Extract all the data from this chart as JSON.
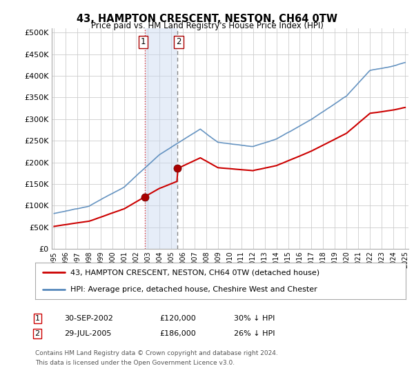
{
  "title": "43, HAMPTON CRESCENT, NESTON, CH64 0TW",
  "subtitle": "Price paid vs. HM Land Registry's House Price Index (HPI)",
  "ylabel_ticks": [
    "£0",
    "£50K",
    "£100K",
    "£150K",
    "£200K",
    "£250K",
    "£300K",
    "£350K",
    "£400K",
    "£450K",
    "£500K"
  ],
  "ytick_values": [
    0,
    50000,
    100000,
    150000,
    200000,
    250000,
    300000,
    350000,
    400000,
    450000,
    500000
  ],
  "ylim": [
    0,
    510000
  ],
  "xlim_start": 1994.8,
  "xlim_end": 2025.3,
  "hpi_color": "#5588bb",
  "price_color": "#cc0000",
  "sale1_date": 2002.75,
  "sale1_price": 120000,
  "sale2_date": 2005.55,
  "sale2_price": 186000,
  "legend_line1": "43, HAMPTON CRESCENT, NESTON, CH64 0TW (detached house)",
  "legend_line2": "HPI: Average price, detached house, Cheshire West and Chester",
  "footnote1": "Contains HM Land Registry data © Crown copyright and database right 2024.",
  "footnote2": "This data is licensed under the Open Government Licence v3.0.",
  "background_color": "#ffffff",
  "plot_bg_color": "#ffffff",
  "grid_color": "#cccccc",
  "shade_color": "#c8d8f0",
  "shade_alpha": 0.45
}
